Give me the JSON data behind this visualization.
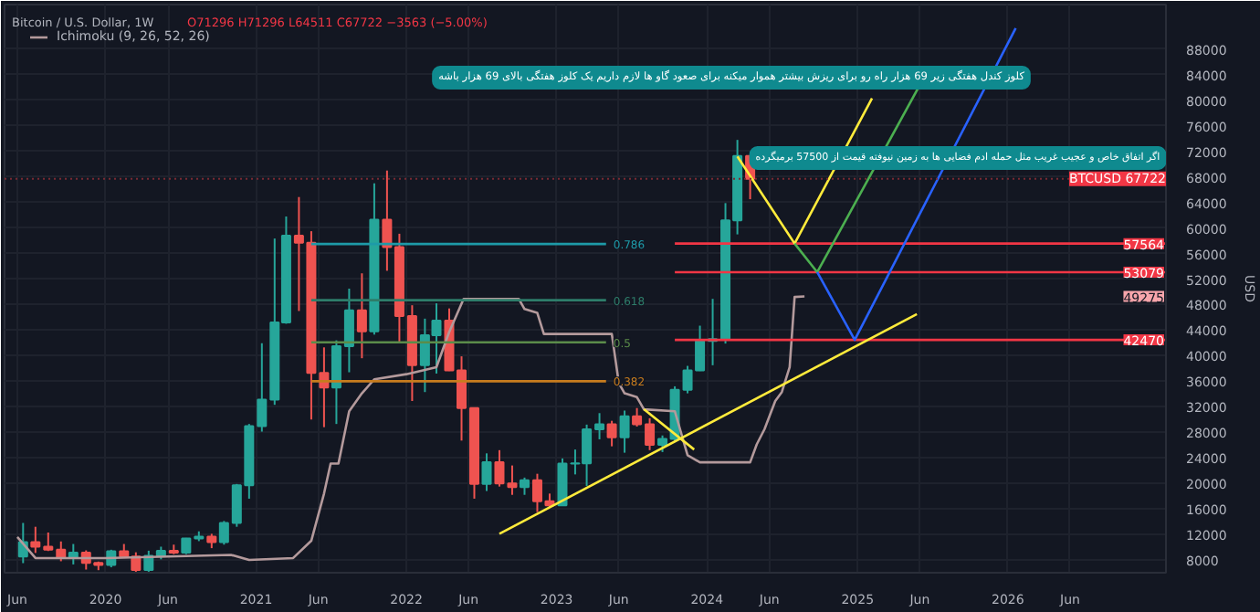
{
  "chart_data": {
    "type": "candlestick",
    "title": "Bitcoin / U.S. Dollar, 1W",
    "subtitle": "O71296 H71296 L64511 C67722 −3563 (−5.00%)",
    "ylabel": "USD",
    "x": [
      "2019-06-15",
      "2019-07-15",
      "2019-08-15",
      "2019-09-15",
      "2019-10-15",
      "2019-11-15",
      "2019-12-15",
      "2020-01-15",
      "2020-02-15",
      "2020-03-15",
      "2020-04-15",
      "2020-05-15",
      "2020-06-15",
      "2020-07-15",
      "2020-08-15",
      "2020-09-15",
      "2020-10-15",
      "2020-11-15",
      "2020-12-15",
      "2021-01-15",
      "2021-02-15",
      "2021-03-15",
      "2021-04-15",
      "2021-05-15",
      "2021-06-15",
      "2021-07-15",
      "2021-08-15",
      "2021-09-15",
      "2021-10-15",
      "2021-11-15",
      "2021-12-15",
      "2022-01-15",
      "2022-02-15",
      "2022-03-15",
      "2022-04-15",
      "2022-05-15",
      "2022-06-15",
      "2022-07-15",
      "2022-08-15",
      "2022-09-15",
      "2022-10-15",
      "2022-11-15",
      "2022-12-15",
      "2023-01-15",
      "2023-02-15",
      "2023-03-15",
      "2023-04-15",
      "2023-05-15",
      "2023-06-15",
      "2023-07-15",
      "2023-08-15",
      "2023-09-15",
      "2023-10-15",
      "2023-11-15",
      "2023-12-15",
      "2024-01-15",
      "2024-02-15",
      "2024-03-15",
      "2024-04-15"
    ],
    "ohlc": [
      [
        8550,
        13800,
        7500,
        10800
      ],
      [
        10800,
        13200,
        9100,
        10080
      ],
      [
        10080,
        12300,
        9400,
        9600
      ],
      [
        9600,
        10900,
        7800,
        8300
      ],
      [
        8300,
        10500,
        7300,
        9150
      ],
      [
        9150,
        9500,
        6500,
        7550
      ],
      [
        7550,
        7750,
        6400,
        7200
      ],
      [
        7200,
        9600,
        6850,
        9350
      ],
      [
        9350,
        10500,
        8450,
        8550
      ],
      [
        8550,
        9200,
        6000,
        6420
      ],
      [
        6420,
        9450,
        6150,
        8630
      ],
      [
        8630,
        10080,
        8100,
        9450
      ],
      [
        9450,
        10400,
        8900,
        9140
      ],
      [
        9140,
        11450,
        8900,
        11350
      ],
      [
        11350,
        12480,
        10950,
        11650
      ],
      [
        11650,
        12100,
        9850,
        10780
      ],
      [
        10780,
        14100,
        10400,
        13800
      ],
      [
        13800,
        19900,
        13200,
        19700
      ],
      [
        19700,
        29300,
        17600,
        28950
      ],
      [
        28950,
        41950,
        28100,
        33100
      ],
      [
        33100,
        58350,
        32300,
        45200
      ],
      [
        45200,
        61800,
        45000,
        58800
      ],
      [
        58800,
        64850,
        47000,
        57700
      ],
      [
        57700,
        59500,
        30000,
        37300
      ],
      [
        37300,
        41300,
        28800,
        35000
      ],
      [
        35000,
        42400,
        29300,
        41500
      ],
      [
        41500,
        50500,
        37400,
        47100
      ],
      [
        47100,
        52900,
        39600,
        43800
      ],
      [
        43800,
        67000,
        43300,
        61300
      ],
      [
        61300,
        69000,
        53300,
        57000
      ],
      [
        57000,
        59100,
        42000,
        46200
      ],
      [
        46200,
        47900,
        32900,
        38500
      ],
      [
        38500,
        45800,
        34300,
        43200
      ],
      [
        43200,
        48200,
        37200,
        45500
      ],
      [
        45500,
        47400,
        37600,
        37700
      ],
      [
        37700,
        39900,
        26700,
        31800
      ],
      [
        31800,
        31900,
        17600,
        19900
      ],
      [
        19900,
        24700,
        18800,
        23300
      ],
      [
        23300,
        25200,
        19500,
        20000
      ],
      [
        20000,
        22800,
        18200,
        19400
      ],
      [
        19400,
        20900,
        18200,
        20500
      ],
      [
        20500,
        21500,
        15500,
        17200
      ],
      [
        17200,
        18400,
        16300,
        16550
      ],
      [
        16550,
        23900,
        16500,
        23100
      ],
      [
        23100,
        25300,
        21400,
        23150
      ],
      [
        23150,
        29200,
        19600,
        28450
      ],
      [
        28450,
        31000,
        26900,
        29250
      ],
      [
        29250,
        29800,
        25800,
        27200
      ],
      [
        27200,
        31400,
        24800,
        30500
      ],
      [
        30500,
        31800,
        28900,
        29250
      ],
      [
        29250,
        30200,
        25200,
        26050
      ],
      [
        26050,
        27500,
        24900,
        26950
      ],
      [
        26950,
        35200,
        26550,
        34650
      ],
      [
        34650,
        38400,
        34100,
        37700
      ],
      [
        37700,
        44700,
        37600,
        42300
      ],
      [
        42300,
        48900,
        38500,
        42600
      ],
      [
        42600,
        63900,
        41900,
        61200
      ],
      [
        61200,
        73800,
        59000,
        71296
      ],
      [
        71296,
        71296,
        64511,
        67722
      ]
    ],
    "colors": [
      "#26a69a",
      "#ef5350",
      "#ef5350",
      "#ef5350",
      "#26a69a",
      "#ef5350",
      "#ef5350",
      "#26a69a",
      "#ef5350",
      "#ef5350",
      "#26a69a",
      "#26a69a",
      "#ef5350",
      "#26a69a",
      "#26a69a",
      "#ef5350",
      "#26a69a",
      "#26a69a",
      "#26a69a",
      "#26a69a",
      "#26a69a",
      "#26a69a",
      "#ef5350",
      "#ef5350",
      "#ef5350",
      "#26a69a",
      "#26a69a",
      "#ef5350",
      "#26a69a",
      "#ef5350",
      "#ef5350",
      "#ef5350",
      "#26a69a",
      "#26a69a",
      "#ef5350",
      "#ef5350",
      "#ef5350",
      "#26a69a",
      "#ef5350",
      "#ef5350",
      "#26a69a",
      "#ef5350",
      "#ef5350",
      "#26a69a",
      "#26a69a",
      "#26a69a",
      "#26a69a",
      "#ef5350",
      "#26a69a",
      "#ef5350",
      "#ef5350",
      "#26a69a",
      "#26a69a",
      "#26a69a",
      "#26a69a",
      "#26a69a",
      "#26a69a",
      "#26a69a",
      "#ef5350"
    ],
    "series": [
      {
        "type": "line",
        "name": "Ichimoku (9, 26, 52, 26)",
        "color": "#b49a9c",
        "x": [
          "2019-06-01",
          "2019-07-15",
          "2020-01-01",
          "2020-11-01",
          "2020-12-15",
          "2021-04-01",
          "2021-05-15",
          "2021-06-15",
          "2021-07-01",
          "2021-07-20",
          "2021-08-15",
          "2021-09-15",
          "2021-10-15",
          "2022-01-01",
          "2022-03-15",
          "2022-04-15",
          "2022-05-20",
          "2022-10-01",
          "2022-10-15",
          "2022-11-15",
          "2022-12-01",
          "2023-05-15",
          "2023-06-01",
          "2023-06-15",
          "2023-07-15",
          "2023-08-01",
          "2023-10-15",
          "2023-11-15",
          "2023-12-15",
          "2024-04-15",
          "2024-05-01",
          "2024-05-20",
          "2024-06-15",
          "2024-07-01",
          "2024-07-20",
          "2024-08-01",
          "2024-08-25"
        ],
        "values": [
          11600,
          8300,
          8300,
          8800,
          8000,
          8300,
          11000,
          18400,
          23100,
          23100,
          31300,
          34100,
          36300,
          37100,
          38200,
          43700,
          48900,
          48900,
          47300,
          46700,
          43400,
          43400,
          35700,
          34100,
          33500,
          31600,
          31300,
          24400,
          23300,
          23300,
          26100,
          28500,
          32900,
          34300,
          38200,
          49200,
          49275
        ]
      },
      {
        "type": "line",
        "name": "0.786",
        "color": "#1e9aa8",
        "x": [
          "2021-05-15",
          "2023-05-01"
        ],
        "values": [
          57500,
          57500
        ]
      },
      {
        "type": "line",
        "name": "0.618",
        "color": "#2e7d6a",
        "x": [
          "2021-05-15",
          "2023-05-01"
        ],
        "values": [
          48700,
          48700
        ]
      },
      {
        "type": "line",
        "name": "0.5",
        "color": "#5b8c4a",
        "x": [
          "2021-05-15",
          "2023-05-01"
        ],
        "values": [
          42100,
          42100
        ]
      },
      {
        "type": "line",
        "name": "0.382",
        "color": "#c77c1e",
        "x": [
          "2021-05-15",
          "2023-05-01"
        ],
        "values": [
          36000,
          36000
        ]
      },
      {
        "type": "line",
        "name": "57564",
        "color": "#f23645",
        "x": [
          "2023-10-15",
          "2027-01-20"
        ],
        "values": [
          57564,
          57564
        ]
      },
      {
        "type": "line",
        "name": "53079",
        "color": "#f23645",
        "x": [
          "2023-10-15",
          "2027-01-20"
        ],
        "values": [
          53079,
          53079
        ]
      },
      {
        "type": "line",
        "name": "42470",
        "color": "#f23645",
        "x": [
          "2023-10-15",
          "2027-01-20"
        ],
        "values": [
          42470,
          42470
        ]
      },
      {
        "type": "line",
        "color": "#ffeb3b",
        "x": [
          "2022-08-15",
          "2025-05-25"
        ],
        "values": [
          12100,
          46500
        ]
      },
      {
        "type": "line",
        "color": "#ffeb3b",
        "x": [
          "2023-08-01",
          "2023-12-01"
        ],
        "values": [
          31600,
          25300
        ]
      },
      {
        "type": "line",
        "color": "#ffeb3b",
        "x": [
          "2024-03-15",
          "2024-08-01",
          "2025-02-05"
        ],
        "values": [
          71200,
          57564,
          80300
        ]
      },
      {
        "type": "line",
        "color": "#4caf50",
        "x": [
          "2024-08-01",
          "2024-09-25",
          "2025-06-25"
        ],
        "values": [
          57564,
          53079,
          85200
        ]
      },
      {
        "type": "line",
        "color": "#2962ff",
        "x": [
          "2024-09-25",
          "2024-12-25",
          "2026-01-20"
        ],
        "values": [
          53079,
          42470,
          91300
        ]
      }
    ],
    "ref_lines": [
      {
        "axis": "y",
        "value": 67722,
        "label": "BTCUSD 67722",
        "color": "#7a2a33",
        "line_style": "dotted"
      }
    ],
    "annotations": [
      "کلوز کندل هفتگی زیر 69 هزار راه رو برای ریزش بیشتر هموار میکنه برای صعود گاو ها لازم داریم یک کلوز هفتگی بالای 69 هزار باشه",
      "اگر اتفاق خاص و عجیب غریب مثل حمله ادم فضایی ها به زمین نیوفته قیمت از 57500 برمیگرده",
      "49275"
    ],
    "xlim": [
      "2019-05-01",
      "2027-01-20"
    ],
    "ylim": [
      6000,
      95000
    ],
    "xticks": [
      {
        "value": "2019-06-01",
        "label": "Jun"
      },
      {
        "value": "2020-01-01",
        "label": "2020"
      },
      {
        "value": "2020-06-01",
        "label": "Jun"
      },
      {
        "value": "2021-01-01",
        "label": "2021"
      },
      {
        "value": "2021-06-01",
        "label": "Jun"
      },
      {
        "value": "2022-01-01",
        "label": "2022"
      },
      {
        "value": "2022-06-01",
        "label": "Jun"
      },
      {
        "value": "2023-01-01",
        "label": "2023"
      },
      {
        "value": "2023-06-01",
        "label": "Jun"
      },
      {
        "value": "2024-01-01",
        "label": "2024"
      },
      {
        "value": "2024-06-01",
        "label": "Jun"
      },
      {
        "value": "2025-01-01",
        "label": "2025"
      },
      {
        "value": "2025-06-01",
        "label": "Jun"
      },
      {
        "value": "2026-01-01",
        "label": "2026"
      },
      {
        "value": "2026-06-01",
        "label": "Jun"
      }
    ],
    "yticks": [
      8000,
      12000,
      16000,
      20000,
      24000,
      28000,
      32000,
      36000,
      40000,
      44000,
      48000,
      52000,
      56000,
      60000,
      64000,
      68000,
      72000,
      76000,
      80000,
      84000,
      88000
    ],
    "grid": true,
    "legend": "top left"
  }
}
